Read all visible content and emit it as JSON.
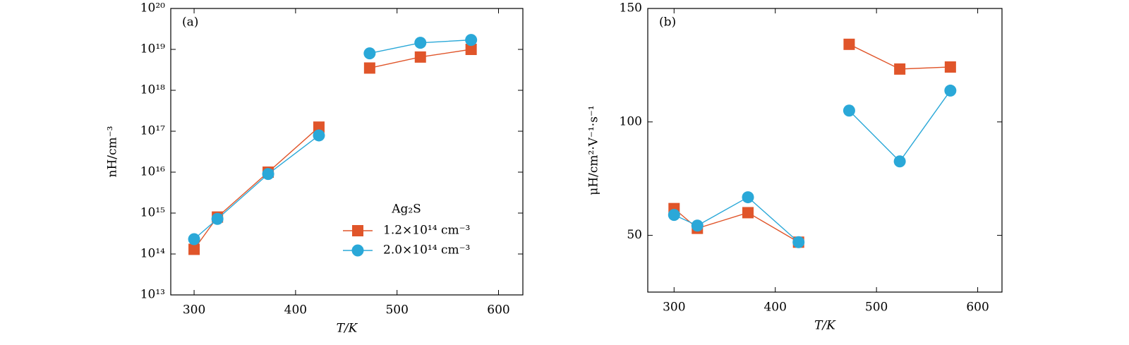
{
  "chart_data": [
    {
      "type": "line",
      "annotation": "(a)",
      "x_label": "T/K",
      "y_label": "nH/cm⁻³",
      "log_y": true,
      "xlim": [
        277,
        624
      ],
      "ylim": [
        10000000000000.0,
        1e+20
      ],
      "xticks": [
        300,
        400,
        500,
        600
      ],
      "yticks": [
        {
          "value": 10000000000000.0,
          "label": "10¹³"
        },
        {
          "value": 100000000000000.0,
          "label": "10¹⁴"
        },
        {
          "value": 1000000000000000.0,
          "label": "10¹⁵"
        },
        {
          "value": 1e+16,
          "label": "10¹⁶"
        },
        {
          "value": 1e+17,
          "label": "10¹⁷"
        },
        {
          "value": 1e+18,
          "label": "10¹⁸"
        },
        {
          "value": 1e+19,
          "label": "10¹⁹"
        },
        {
          "value": 1e+20,
          "label": "10²⁰"
        }
      ],
      "legend": "lower right",
      "legend_title": "Ag₂S",
      "x": [
        300,
        323,
        373,
        423,
        null,
        473,
        523,
        573
      ],
      "series": [
        {
          "name": "1.2×10¹⁴ cm⁻³",
          "color": "#e0552a",
          "marker": "square",
          "values": [
            130000000000000.0,
            800000000000000.0,
            1e+16,
            1.26e+17,
            null,
            3.5e+18,
            6.5e+18,
            1e+19
          ]
        },
        {
          "name": "2.0×10¹⁴ cm⁻³",
          "color": "#2aa8d8",
          "marker": "circle",
          "values": [
            230000000000000.0,
            720000000000000.0,
            9000000000000000.0,
            7.9e+16,
            null,
            8e+18,
            1.45e+19,
            1.7e+19
          ]
        }
      ]
    },
    {
      "type": "line",
      "annotation": "(b)",
      "x_label": "T/K",
      "y_label": "μH/cm²·V⁻¹·s⁻¹",
      "log_y": false,
      "xlim": [
        274,
        624
      ],
      "ylim": [
        25,
        150
      ],
      "xticks": [
        300,
        400,
        500,
        600
      ],
      "yticks": [
        50,
        100,
        150
      ],
      "x": [
        300,
        323,
        373,
        423,
        null,
        473,
        523,
        573
      ],
      "series": [
        {
          "color": "#e0552a",
          "marker": "square",
          "values": [
            61.8,
            53.1,
            60,
            47,
            null,
            134.2,
            123.3,
            124.2
          ]
        },
        {
          "color": "#2aa8d8",
          "marker": "circle",
          "values": [
            59,
            54.3,
            66.8,
            47,
            null,
            105,
            82.6,
            113.8
          ]
        }
      ]
    }
  ]
}
